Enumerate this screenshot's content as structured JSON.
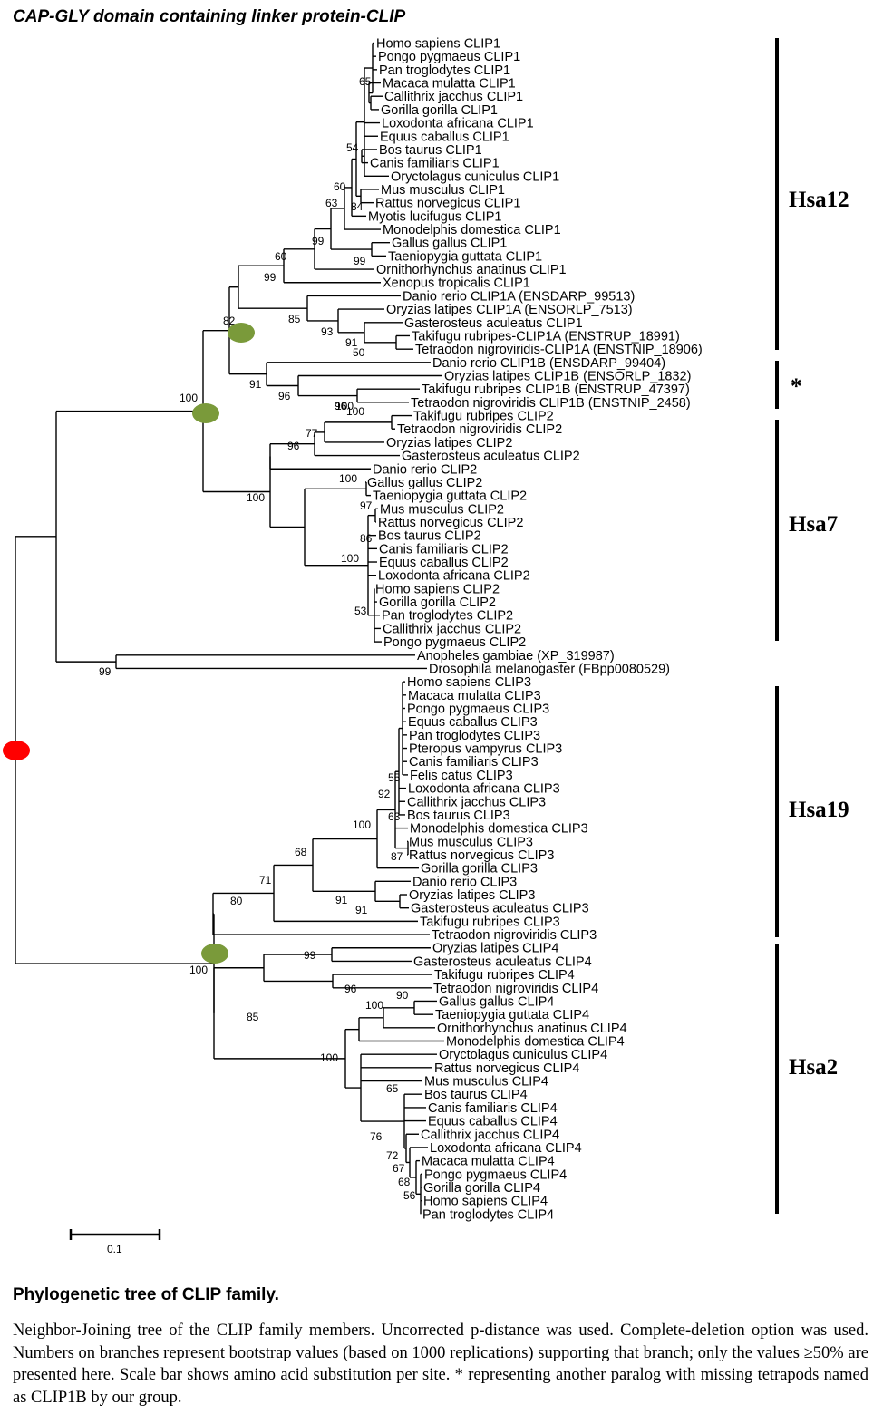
{
  "title": "CAP-GLY domain containing linker protein-CLIP",
  "leaves": [
    "Homo sapiens CLIP1",
    "Pongo pygmaeus CLIP1",
    "Pan troglodytes CLIP1",
    "Macaca mulatta CLIP1",
    "Callithrix jacchus CLIP1",
    "Gorilla gorilla CLIP1",
    "Loxodonta africana CLIP1",
    "Equus caballus CLIP1",
    "Bos taurus CLIP1",
    "Canis familiaris CLIP1",
    "Oryctolagus cuniculus CLIP1",
    "Mus musculus CLIP1",
    "Rattus norvegicus CLIP1",
    "Myotis lucifugus CLIP1",
    "Monodelphis domestica CLIP1",
    "Gallus gallus CLIP1",
    "Taeniopygia guttata CLIP1",
    "Ornithorhynchus anatinus CLIP1",
    "Xenopus tropicalis CLIP1",
    "Danio rerio CLIP1A (ENSDARP_99513)",
    "Oryzias latipes CLIP1A (ENSORLP_7513)",
    "Gasterosteus aculeatus CLIP1",
    "Takifugu rubripes-CLIP1A (ENSTRUP_18991)",
    "Tetraodon nigroviridis-CLIP1A (ENSTNIP_18906)",
    "Danio rerio CLIP1B (ENSDARP_99404)",
    "Oryzias latipes CLIP1B (ENSORLP_1832)",
    "Takifugu rubripes CLIP1B (ENSTRUP_47397)",
    "Tetraodon nigroviridis CLIP1B (ENSTNIP_2458)",
    "Takifugu rubripes CLIP2",
    "Tetraodon nigroviridis CLIP2",
    "Oryzias latipes CLIP2",
    "Gasterosteus aculeatus CLIP2",
    "Danio rerio CLIP2",
    "Gallus gallus CLIP2",
    "Taeniopygia guttata CLIP2",
    "Mus musculus CLIP2",
    "Rattus norvegicus CLIP2",
    "Bos taurus CLIP2",
    "Canis familiaris CLIP2",
    "Equus caballus CLIP2",
    "Loxodonta africana CLIP2",
    "Homo sapiens CLIP2",
    "Gorilla gorilla CLIP2",
    "Pan troglodytes CLIP2",
    "Callithrix jacchus CLIP2",
    "Pongo pygmaeus CLIP2",
    "Anopheles gambiae (XP_319987)",
    "Drosophila melanogaster (FBpp0080529)",
    "Homo sapiens CLIP3",
    "Macaca mulatta CLIP3",
    "Pongo pygmaeus CLIP3",
    "Equus caballus CLIP3",
    "Pan troglodytes CLIP3",
    "Pteropus vampyrus CLIP3",
    "Canis familiaris CLIP3",
    "Felis catus CLIP3",
    "Loxodonta africana CLIP3",
    "Callithrix jacchus CLIP3",
    "Bos taurus CLIP3",
    "Monodelphis domestica CLIP3",
    "Mus musculus CLIP3",
    "Rattus norvegicus CLIP3",
    "Gorilla gorilla CLIP3",
    "Danio rerio CLIP3",
    "Oryzias latipes CLIP3",
    "Gasterosteus aculeatus CLIP3",
    "Takifugu rubripes CLIP3",
    "Tetraodon nigroviridis CLIP3",
    "Oryzias latipes CLIP4",
    "Gasterosteus aculeatus CLIP4",
    "Takifugu rubripes CLIP4",
    "Tetraodon nigroviridis CLIP4",
    "Gallus gallus CLIP4",
    "Taeniopygia guttata CLIP4",
    "Ornithorhynchus anatinus CLIP4",
    "Monodelphis domestica CLIP4",
    "Oryctolagus cuniculus CLIP4",
    "Rattus norvegicus CLIP4",
    "Mus musculus CLIP4",
    "Bos taurus CLIP4",
    "Canis familiaris CLIP4",
    "Equus caballus CLIP4",
    "Callithrix jacchus CLIP4",
    "Loxodonta africana CLIP4",
    "Macaca mulatta CLIP4",
    "Pongo pygmaeus CLIP4",
    "Gorilla gorilla CLIP4",
    "Homo sapiens CLIP4",
    "Pan troglodytes CLIP4"
  ],
  "bootstrap_values": [
    "65",
    "54",
    "60",
    "63",
    "84",
    "99",
    "99",
    "60",
    "99",
    "85",
    "93",
    "91",
    "50",
    "82",
    "91",
    "96",
    "100",
    "96",
    "100",
    "77",
    "96",
    "100",
    "100",
    "97",
    "86",
    "100",
    "53",
    "99",
    "55",
    "92",
    "63",
    "87",
    "100",
    "68",
    "91",
    "91",
    "71",
    "80",
    "100",
    "99",
    "96",
    "90",
    "100",
    "100",
    "85",
    "65",
    "76",
    "72",
    "67",
    "68",
    "56",
    "100"
  ],
  "clades": [
    {
      "label": "Hsa12"
    },
    {
      "label": "*"
    },
    {
      "label": "Hsa7"
    },
    {
      "label": "Hsa19"
    },
    {
      "label": "Hsa2"
    }
  ],
  "markers": {
    "duplication_color": "#7a9a3a",
    "root_color": "#ff0000"
  },
  "scale_bar": {
    "label": "0.1"
  },
  "caption": {
    "title": "Phylogenetic tree of CLIP family.",
    "body": "Neighbor-Joining tree of the CLIP family members. Uncorrected p-distance was used. Complete-deletion option was used. Numbers on branches represent bootstrap values (based on 1000 replications) supporting that branch; only the values ≥50% are presented here. Scale bar shows amino acid substitution per site. * representing another paralog with missing tetrapods named as CLIP1B by our group."
  }
}
